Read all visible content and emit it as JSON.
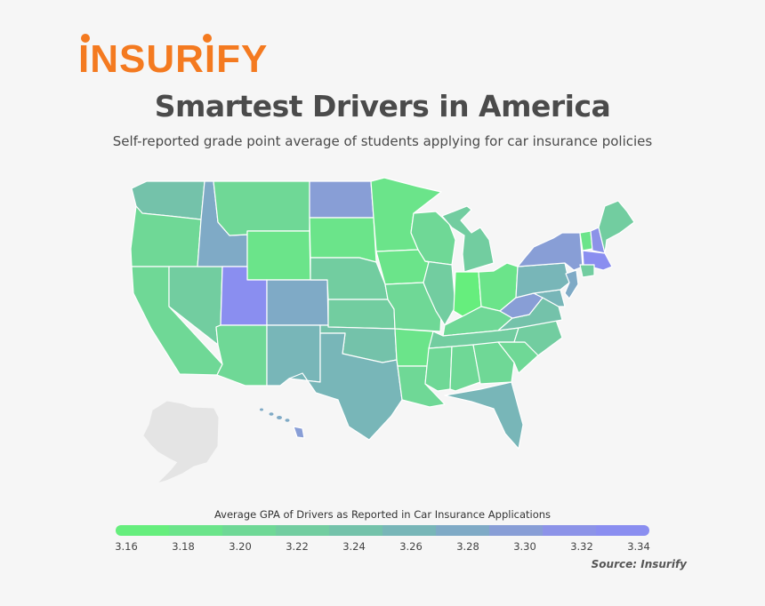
{
  "brand": {
    "logo_text": "INSURIFY",
    "color": "#f47a20"
  },
  "header": {
    "title": "Smartest Drivers in America",
    "subtitle": "Self-reported grade point average of students applying for car insurance policies"
  },
  "legend": {
    "title": "Average GPA of Drivers as Reported in Car Insurance Applications",
    "ticks": [
      "3.16",
      "3.18",
      "3.20",
      "3.22",
      "3.24",
      "3.26",
      "3.28",
      "3.30",
      "3.32",
      "3.34"
    ],
    "colors": [
      "#66ee7d",
      "#6be48a",
      "#6fd896",
      "#72cda0",
      "#74c2aa",
      "#78b6b8",
      "#7faac6",
      "#889ed6",
      "#8c93e8",
      "#8a8ef0"
    ]
  },
  "source": "Source: Insurify",
  "map_data": {
    "type": "choropleth",
    "states": {
      "WA": 3.24,
      "OR": 3.2,
      "CA": 3.2,
      "ID": 3.28,
      "NV": 3.22,
      "MT": 3.21,
      "WY": 3.18,
      "UT": 3.34,
      "AZ": 3.21,
      "CO": 3.28,
      "NM": 3.25,
      "ND": 3.29,
      "SD": 3.19,
      "NE": 3.23,
      "KS": 3.22,
      "OK": 3.24,
      "TX": 3.25,
      "MN": 3.18,
      "IA": 3.19,
      "MO": 3.21,
      "AR": 3.19,
      "LA": 3.21,
      "WI": 3.2,
      "IL": 3.22,
      "MI": 3.22,
      "IN": 3.16,
      "OH": 3.18,
      "KY": 3.21,
      "TN": 3.23,
      "MS": 3.21,
      "AL": 3.2,
      "GA": 3.21,
      "FL": 3.26,
      "SC": 3.21,
      "NC": 3.23,
      "VA": 3.24,
      "WV": 3.29,
      "PA": 3.25,
      "NY": 3.29,
      "VT": 3.18,
      "NH": 3.32,
      "ME": 3.22,
      "MA": 3.33,
      "CT": 3.22,
      "NJ": 3.27,
      "MD": 3.26,
      "HI": 3.29
    }
  }
}
